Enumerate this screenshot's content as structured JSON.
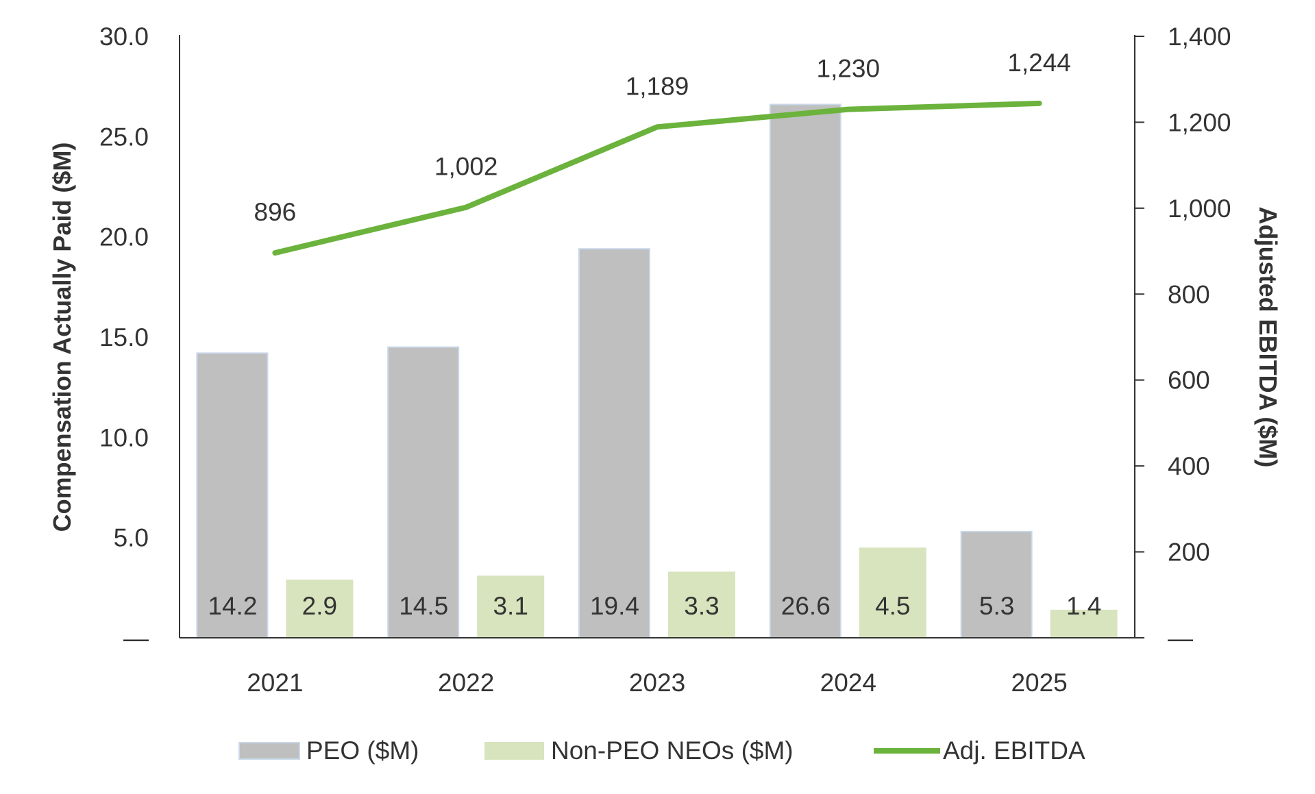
{
  "chart_data": {
    "type": "bar+line",
    "categories": [
      "2021",
      "2022",
      "2023",
      "2024",
      "2025"
    ],
    "series": [
      {
        "name": "PEO ($M)",
        "type": "bar",
        "axis": "left",
        "values": [
          14.2,
          14.5,
          19.4,
          26.6,
          5.3
        ],
        "labels": [
          "14.2",
          "14.5",
          "19.4",
          "26.6",
          "5.3"
        ],
        "color": "#BFBFBF",
        "border": "#C9D8EA"
      },
      {
        "name": "Non-PEO NEOs ($M)",
        "type": "bar",
        "axis": "left",
        "values": [
          2.9,
          3.1,
          3.3,
          4.5,
          1.4
        ],
        "labels": [
          "2.9",
          "3.1",
          "3.3",
          "4.5",
          "1.4"
        ],
        "color": "#D8E4BE"
      },
      {
        "name": "Adj. EBITDA",
        "type": "line",
        "axis": "right",
        "values": [
          896,
          1002,
          1189,
          1230,
          1244
        ],
        "labels": [
          "896",
          "1,002",
          "1,189",
          "1,230",
          "1,244"
        ],
        "color": "#6BB33C"
      }
    ],
    "ylabel": "Compensation Actually Paid ($M)",
    "y2label": "Adjusted EBITDA ($M)",
    "ylim": [
      0,
      30
    ],
    "y2lim": [
      0,
      1400
    ],
    "yticks": [
      "—",
      "5.0",
      "10.0",
      "15.0",
      "20.0",
      "25.0",
      "30.0"
    ],
    "y2ticks": [
      "—",
      "200",
      "400",
      "600",
      "800",
      "1,000",
      "1,200",
      "1,400"
    ],
    "grid": false,
    "legend": "bottom"
  }
}
